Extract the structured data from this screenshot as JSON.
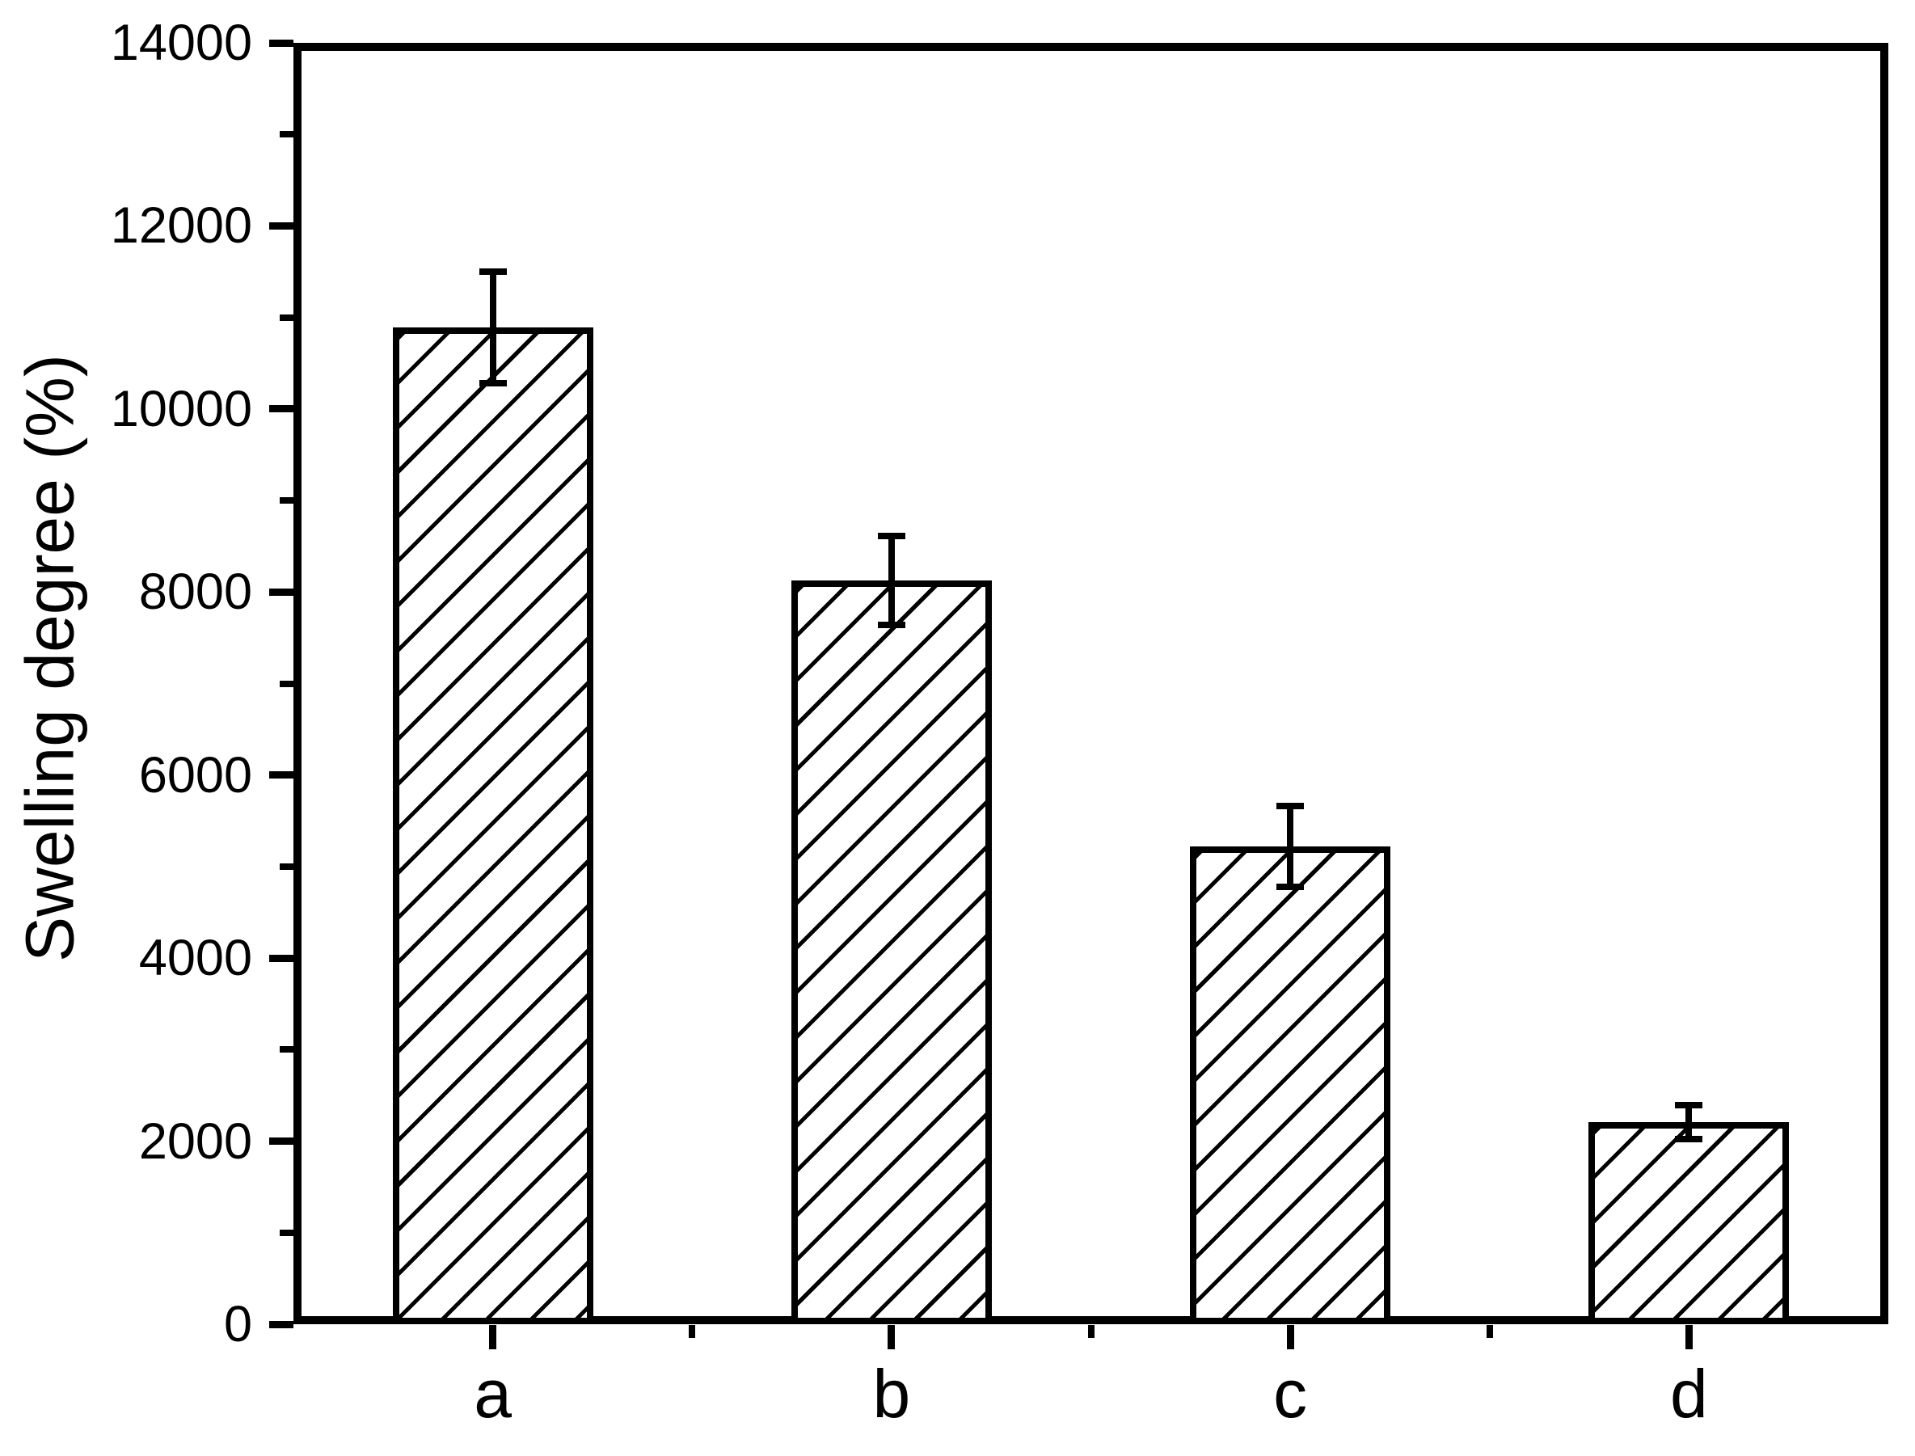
{
  "chart_data": {
    "type": "bar",
    "title": "",
    "xlabel": "",
    "ylabel": "Swelling degree (%)",
    "categories": [
      "a",
      "b",
      "c",
      "d"
    ],
    "values": [
      10890,
      8125,
      5220,
      2205
    ],
    "errors": [
      610,
      485,
      440,
      185
    ],
    "ylim": [
      0,
      14000
    ],
    "ytick_step": 2000,
    "yminor_step": 1000,
    "ytick_labels": [
      "0",
      "2000",
      "4000",
      "6000",
      "8000",
      "10000",
      "12000",
      "14000"
    ],
    "grid": "off",
    "legend": "none",
    "bar_fill": "diagonal-hatch",
    "axis_color": "#000000",
    "bar_edge_color": "#000000",
    "background_color": "#ffffff"
  }
}
